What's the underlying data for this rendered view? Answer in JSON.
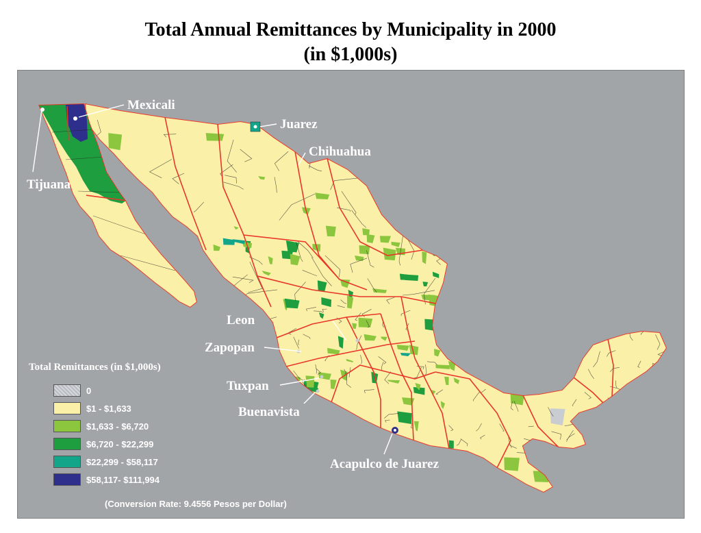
{
  "title": {
    "line1": "Total Annual Remittances by Municipality in 2000",
    "line2": "(in $1,000s)"
  },
  "map": {
    "region": "Mexico",
    "colors": {
      "background": "#a2a5a8",
      "state_border": "#e8362a",
      "municipality_border": "#222222",
      "label": "#ffffff"
    },
    "cities": [
      {
        "name": "Mexicali"
      },
      {
        "name": "Tijuana"
      },
      {
        "name": "Juarez"
      },
      {
        "name": "Chihuahua"
      },
      {
        "name": "Leon"
      },
      {
        "name": "Zapopan"
      },
      {
        "name": "Tuxpan"
      },
      {
        "name": "Buenavista"
      },
      {
        "name": "Acapulco de Juarez"
      }
    ]
  },
  "legend": {
    "title": "Total Remittances (in $1,000s)",
    "items": [
      {
        "label": "0",
        "color": "#c9ccd1"
      },
      {
        "label": "$1 - $1,633",
        "color": "#fbf0a8"
      },
      {
        "label": "$1,633 - $6,720",
        "color": "#8cc63f"
      },
      {
        "label": "$6,720 - $22,299",
        "color": "#1f9e3f"
      },
      {
        "label": "$22,299 - $58,117",
        "color": "#13a58a"
      },
      {
        "label": "$58,117- $111,994",
        "color": "#2e2f8c"
      }
    ]
  },
  "footnote": "(Conversion Rate: 9.4556 Pesos per Dollar)"
}
